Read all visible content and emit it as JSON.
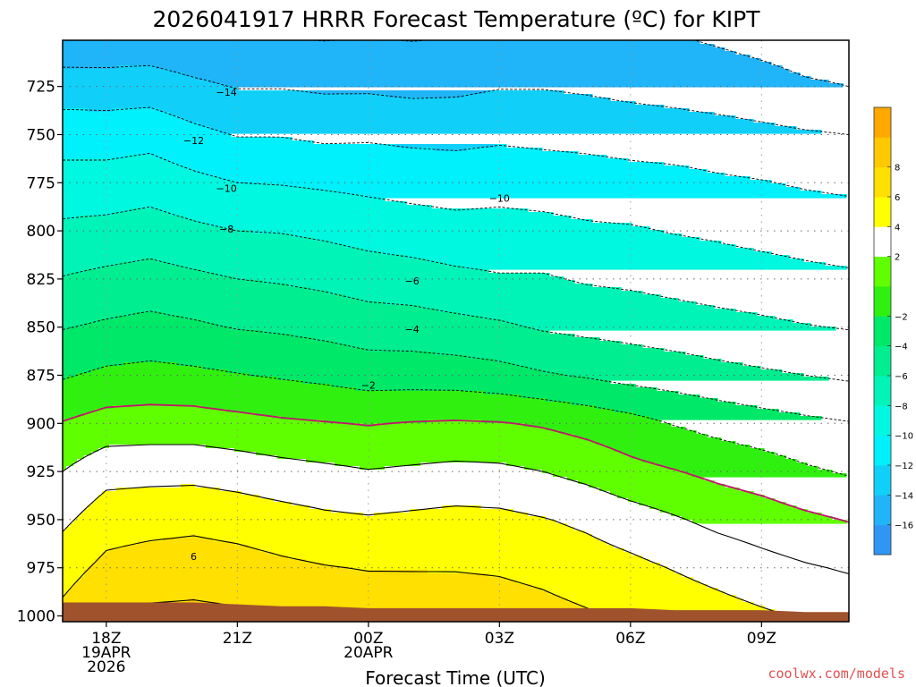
{
  "chart_data": {
    "type": "heatmap",
    "title": "2026041917 HRRR Forecast Temperature (ºC) for KIPT",
    "xlabel": "Forecast Time (UTC)",
    "ylabel": "",
    "credit": "coolwx.com/models",
    "x_ticks": [
      {
        "hour": 0,
        "lines": [
          "18Z",
          "19APR",
          "2026"
        ]
      },
      {
        "hour": 3,
        "lines": [
          "21Z"
        ]
      },
      {
        "hour": 6,
        "lines": [
          "00Z",
          "20APR"
        ]
      },
      {
        "hour": 9,
        "lines": [
          "03Z"
        ]
      },
      {
        "hour": 12,
        "lines": [
          "06Z"
        ]
      },
      {
        "hour": 15,
        "lines": [
          "09Z"
        ]
      }
    ],
    "xlim": [
      -1,
      17
    ],
    "y_ticks": [
      725,
      750,
      775,
      800,
      825,
      850,
      875,
      900,
      925,
      950,
      975,
      1000
    ],
    "ylim": [
      1003,
      701
    ],
    "x": [
      -1,
      0,
      1,
      2,
      3,
      4,
      5,
      6,
      7,
      8,
      9,
      10,
      11,
      12,
      13,
      14,
      15,
      16,
      17
    ],
    "ground_pressure_hpa": [
      993,
      993,
      993,
      993,
      994,
      995,
      995,
      996,
      996,
      996,
      996,
      996,
      996,
      996,
      997,
      997,
      997,
      998,
      998
    ],
    "levels_hpa": [
      700,
      725,
      750,
      775,
      800,
      825,
      850,
      875,
      900,
      925,
      950,
      975,
      1000
    ],
    "temperature_c": [
      [
        -15.5,
        -15.4,
        -15.3,
        -15.7,
        -15.9,
        -16.0,
        -16.1,
        -16.0,
        -16.1,
        -16.0,
        -15.8,
        -15.7,
        -15.6,
        -15.7,
        -15.9,
        -16.2,
        -16.5,
        -16.8,
        -16.9
      ],
      [
        -13.0,
        -13.1,
        -13.0,
        -13.6,
        -14.1,
        -14.1,
        -14.3,
        -14.3,
        -14.5,
        -14.4,
        -14.1,
        -14.1,
        -14.3,
        -14.6,
        -14.8,
        -15.1,
        -15.4,
        -15.8,
        -16.0
      ],
      [
        -10.9,
        -10.9,
        -10.7,
        -11.5,
        -12.1,
        -12.1,
        -12.4,
        -12.3,
        -12.5,
        -12.6,
        -12.4,
        -12.5,
        -12.6,
        -12.8,
        -13.0,
        -13.2,
        -13.5,
        -13.8,
        -14.0
      ],
      [
        -9.2,
        -9.2,
        -8.9,
        -9.5,
        -10.0,
        -10.1,
        -10.3,
        -10.5,
        -10.7,
        -10.8,
        -10.6,
        -10.9,
        -11.1,
        -11.3,
        -11.4,
        -11.7,
        -11.9,
        -12.2,
        -12.4
      ],
      [
        -7.6,
        -7.4,
        -7.1,
        -7.6,
        -8.0,
        -8.1,
        -8.4,
        -8.8,
        -9.1,
        -9.4,
        -9.4,
        -9.4,
        -9.7,
        -9.8,
        -10.1,
        -10.3,
        -10.6,
        -10.8,
        -11.0
      ],
      [
        -5.9,
        -5.5,
        -5.2,
        -5.6,
        -6.0,
        -6.2,
        -6.5,
        -6.9,
        -7.1,
        -7.5,
        -7.8,
        -7.8,
        -8.2,
        -8.4,
        -8.7,
        -9.0,
        -9.2,
        -9.5,
        -9.7
      ],
      [
        -4.1,
        -3.7,
        -3.4,
        -3.7,
        -4.1,
        -4.3,
        -4.6,
        -5.0,
        -5.1,
        -5.4,
        -5.7,
        -6.2,
        -6.5,
        -6.7,
        -7.0,
        -7.3,
        -7.6,
        -7.9,
        -8.1
      ],
      [
        -2.2,
        -1.6,
        -1.4,
        -1.6,
        -1.9,
        -2.2,
        -2.5,
        -2.9,
        -2.9,
        -3.0,
        -3.3,
        -3.8,
        -4.2,
        -4.7,
        -5.0,
        -5.4,
        -5.7,
        -6.0,
        -6.3
      ],
      [
        0.1,
        0.8,
        0.9,
        0.9,
        0.6,
        0.3,
        0.1,
        -0.1,
        0.1,
        0.2,
        0.1,
        -0.2,
        -0.7,
        -1.3,
        -2.1,
        -2.7,
        -3.2,
        -3.6,
        -3.9
      ],
      [
        2.0,
        3.3,
        3.4,
        3.4,
        3.1,
        2.7,
        2.4,
        2.1,
        2.3,
        2.5,
        2.4,
        2.0,
        1.4,
        0.6,
        0.1,
        -0.5,
        -1.0,
        -1.7,
        -2.2
      ],
      [
        3.6,
        5.1,
        5.3,
        5.5,
        5.2,
        4.8,
        4.4,
        4.2,
        4.4,
        4.6,
        4.5,
        4.1,
        3.6,
        2.9,
        2.2,
        1.5,
        1.0,
        0.4,
        -0.1
      ],
      [
        5.2,
        6.5,
        6.9,
        7.0,
        6.8,
        6.4,
        6.1,
        5.9,
        5.9,
        5.9,
        5.8,
        5.5,
        5.0,
        4.5,
        3.9,
        3.3,
        2.7,
        2.2,
        1.8
      ],
      [
        6.5,
        8.0,
        8.4,
        8.5,
        8.3,
        7.9,
        7.6,
        7.3,
        7.2,
        7.1,
        6.9,
        6.6,
        6.2,
        5.8,
        5.3,
        4.8,
        4.3,
        3.8,
        3.4
      ]
    ],
    "contour_levels_c": [
      -16,
      -14,
      -12,
      -10,
      -8,
      -6,
      -4,
      -2,
      0,
      2,
      4,
      6,
      8
    ],
    "contour_labels": [
      {
        "text": "-14",
        "hour": 2.75,
        "p": 728
      },
      {
        "text": "-12",
        "hour": 2.0,
        "p": 753
      },
      {
        "text": "-10",
        "hour": 2.75,
        "p": 778
      },
      {
        "text": "-10",
        "hour": 9.0,
        "p": 783
      },
      {
        "text": "-8",
        "hour": 2.75,
        "p": 799
      },
      {
        "text": "-6",
        "hour": 7.0,
        "p": 826
      },
      {
        "text": "-4",
        "hour": 7.0,
        "p": 851
      },
      {
        "text": "-2",
        "hour": 6.0,
        "p": 880
      },
      {
        "text": "6",
        "hour": 2.0,
        "p": 969
      }
    ],
    "colorbar": {
      "colors": [
        "#3096f6",
        "#20b4f8",
        "#10d0fa",
        "#00f0fc",
        "#00f8e0",
        "#00f4b8",
        "#00ee90",
        "#00e868",
        "#30f010",
        "#60ff00",
        "#ffffff",
        "#ffff00",
        "#ffe000",
        "#ffc800",
        "#ffa800"
      ],
      "bounds": [
        -18,
        -16,
        -14,
        -12,
        -10,
        -8,
        -6,
        -4,
        -2,
        0,
        2,
        4,
        6,
        8,
        10,
        12
      ],
      "tick_values": [
        8,
        6,
        4,
        2,
        -2,
        -4,
        -6,
        -8,
        -10,
        -12,
        -14,
        -16
      ],
      "tick_labels": [
        "8",
        "6",
        "4",
        "2",
        "−2",
        "−4",
        "−6",
        "−8",
        "−10",
        "−12",
        "−14",
        "−16"
      ]
    },
    "styles": {
      "freezing_line_color": "#c0146e",
      "ground_color": "#a0522d",
      "grid_color": "#666666",
      "contour_color": "#000000"
    }
  }
}
